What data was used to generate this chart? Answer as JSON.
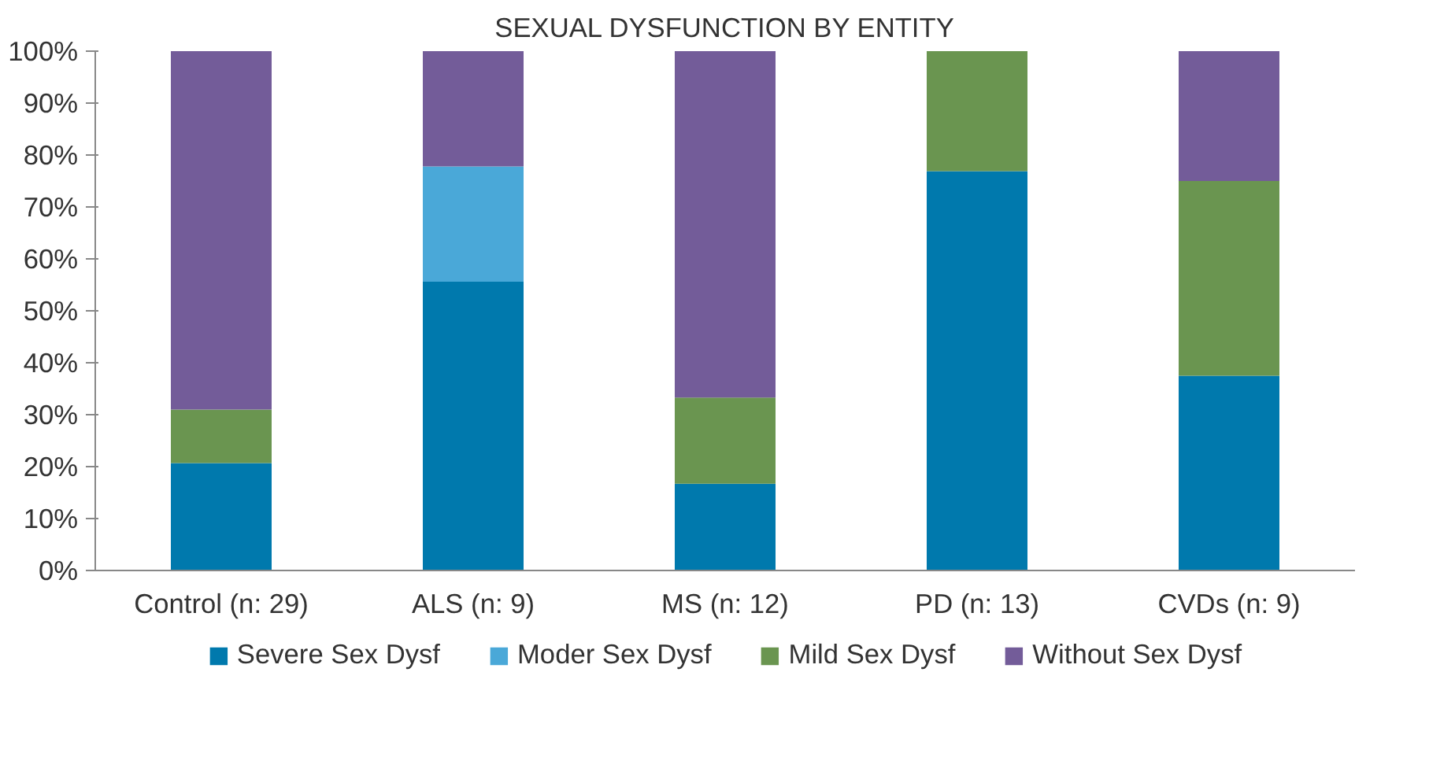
{
  "chart_data": {
    "type": "bar",
    "title": "SEXUAL DYSFUNCTION BY ENTITY",
    "stacked": true,
    "categories": [
      "Control (n: 29)",
      "ALS (n: 9)",
      "MS (n: 12)",
      "PD (n: 13)",
      "CVDs (n: 9)"
    ],
    "series": [
      {
        "name": "Severe Sex Dysf",
        "color": "#0079ad",
        "values": [
          20.7,
          55.6,
          16.7,
          76.9,
          37.5
        ]
      },
      {
        "name": "Moder Sex Dysf",
        "color": "#4aa8d8",
        "values": [
          null,
          22.2,
          null,
          null,
          null
        ]
      },
      {
        "name": "Mild Sex Dysf",
        "color": "#6a9550",
        "values": [
          10.3,
          null,
          16.6,
          23.1,
          37.5
        ]
      },
      {
        "name": "Without Sex Dysf",
        "color": "#735c99",
        "values": [
          69.0,
          22.2,
          66.7,
          null,
          25.0
        ]
      }
    ],
    "ylim": [
      0,
      100
    ],
    "yticks": [
      {
        "value": 0,
        "label": "0%"
      },
      {
        "value": 10,
        "label": "10%"
      },
      {
        "value": 20,
        "label": "20%"
      },
      {
        "value": 30,
        "label": "30%"
      },
      {
        "value": 40,
        "label": "40%"
      },
      {
        "value": 50,
        "label": "50%"
      },
      {
        "value": 60,
        "label": "60%"
      },
      {
        "value": 70,
        "label": "70%"
      },
      {
        "value": 80,
        "label": "80%"
      },
      {
        "value": 90,
        "label": "90%"
      },
      {
        "value": 100,
        "label": "100%"
      }
    ],
    "grid": false,
    "legend": "bottom"
  }
}
